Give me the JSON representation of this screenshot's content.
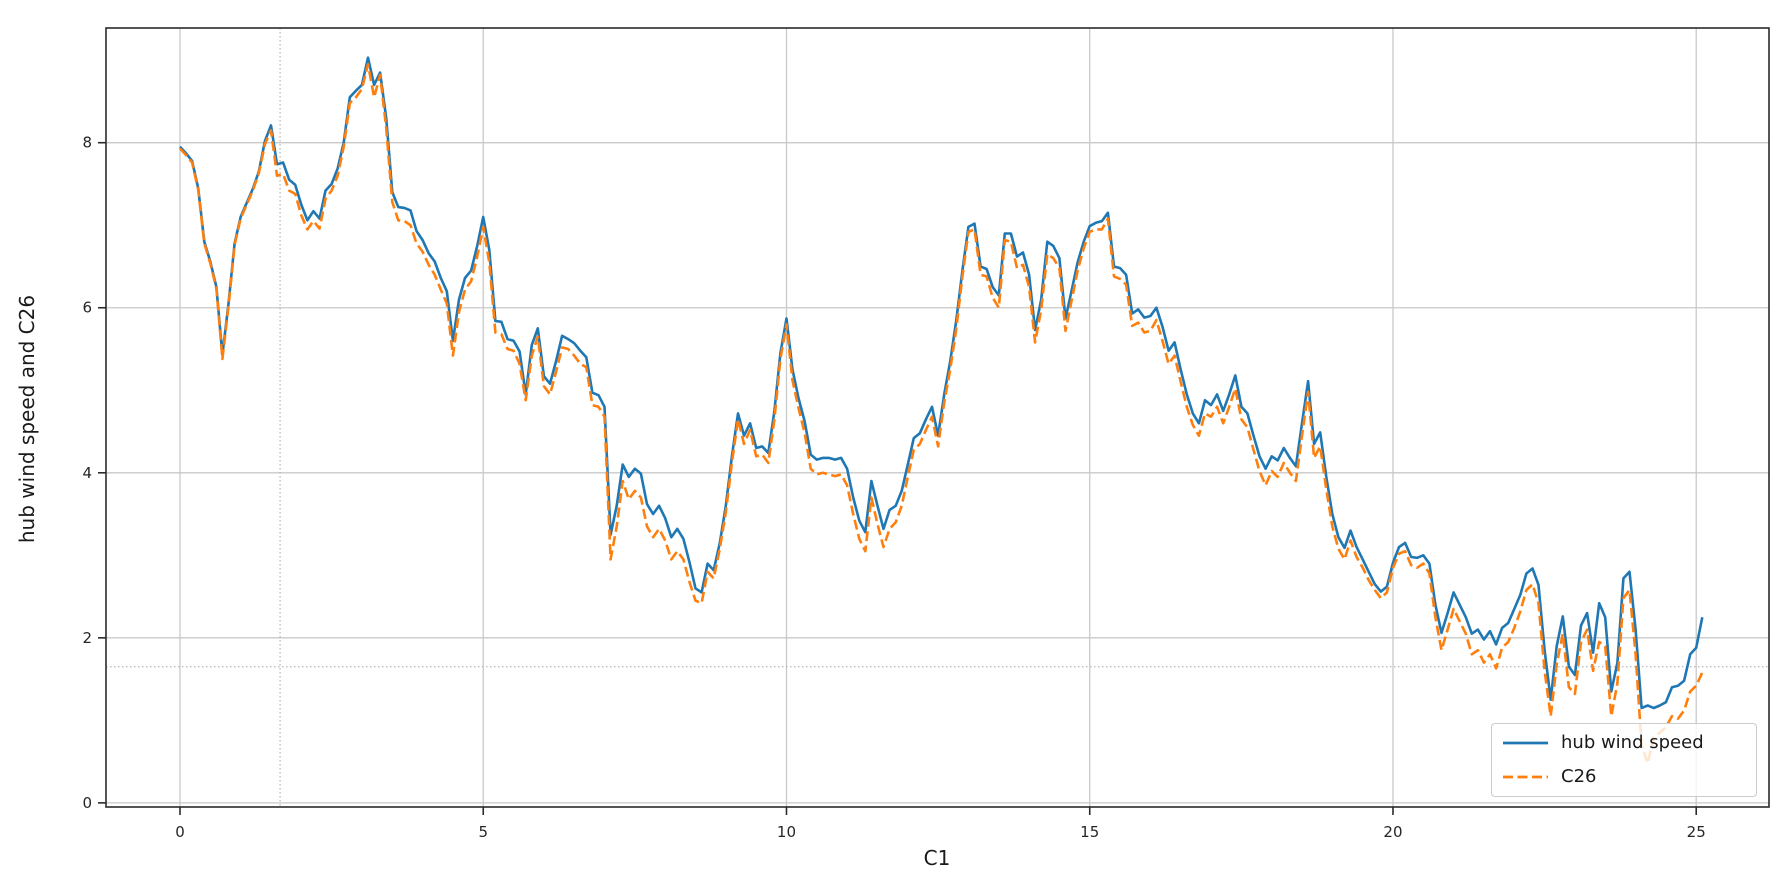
{
  "chart_data": {
    "type": "line",
    "title": "",
    "xlabel": "C1",
    "ylabel": "hub wind speed and C26",
    "xlim": [
      -1.22,
      26.2
    ],
    "ylim": [
      -0.05,
      9.39
    ],
    "x_ticks": [
      0,
      5,
      10,
      15,
      20,
      25
    ],
    "y_ticks": [
      0,
      2,
      4,
      6,
      8
    ],
    "grid": "major, solid light gray",
    "guide_lines": {
      "x": 1.65,
      "y": 1.65,
      "style": "dotted"
    },
    "legend_position": "lower right",
    "x_start": 0,
    "x_step": 0.1,
    "series": [
      {
        "name": "hub wind speed",
        "color": "#1f77b4",
        "style": "solid",
        "values": [
          7.95,
          7.87,
          7.78,
          7.45,
          6.8,
          6.56,
          6.25,
          5.43,
          6.05,
          6.78,
          7.1,
          7.27,
          7.44,
          7.65,
          8.02,
          8.21,
          7.74,
          7.76,
          7.55,
          7.49,
          7.25,
          7.06,
          7.17,
          7.08,
          7.42,
          7.5,
          7.69,
          8.0,
          8.55,
          8.63,
          8.7,
          9.03,
          8.7,
          8.85,
          8.3,
          7.4,
          7.22,
          7.21,
          7.18,
          6.93,
          6.82,
          6.66,
          6.56,
          6.36,
          6.2,
          5.6,
          6.1,
          6.36,
          6.45,
          6.75,
          7.1,
          6.7,
          5.84,
          5.83,
          5.62,
          5.6,
          5.47,
          4.95,
          5.55,
          5.75,
          5.17,
          5.08,
          5.35,
          5.66,
          5.62,
          5.57,
          5.48,
          5.4,
          4.97,
          4.94,
          4.8,
          3.25,
          3.6,
          4.1,
          3.95,
          4.05,
          3.99,
          3.62,
          3.5,
          3.6,
          3.45,
          3.22,
          3.32,
          3.2,
          2.92,
          2.6,
          2.55,
          2.9,
          2.82,
          3.15,
          3.6,
          4.2,
          4.72,
          4.45,
          4.6,
          4.3,
          4.32,
          4.24,
          4.75,
          5.45,
          5.87,
          5.25,
          4.9,
          4.62,
          4.22,
          4.16,
          4.18,
          4.18,
          4.16,
          4.18,
          4.05,
          3.7,
          3.42,
          3.28,
          3.9,
          3.6,
          3.32,
          3.55,
          3.6,
          3.78,
          4.1,
          4.42,
          4.48,
          4.65,
          4.8,
          4.45,
          4.95,
          5.35,
          5.85,
          6.45,
          6.98,
          7.02,
          6.5,
          6.47,
          6.25,
          6.15,
          6.9,
          6.9,
          6.62,
          6.67,
          6.4,
          5.73,
          6.1,
          6.8,
          6.75,
          6.6,
          5.87,
          6.2,
          6.55,
          6.8,
          6.99,
          7.03,
          7.05,
          7.15,
          6.5,
          6.48,
          6.4,
          5.93,
          5.98,
          5.88,
          5.9,
          6.0,
          5.77,
          5.48,
          5.58,
          5.25,
          4.95,
          4.72,
          4.6,
          4.88,
          4.82,
          4.95,
          4.75,
          4.95,
          5.18,
          4.8,
          4.72,
          4.45,
          4.2,
          4.05,
          4.2,
          4.15,
          4.3,
          4.18,
          4.08,
          4.6,
          5.11,
          4.35,
          4.49,
          3.95,
          3.5,
          3.22,
          3.09,
          3.3,
          3.1,
          2.95,
          2.8,
          2.65,
          2.56,
          2.62,
          2.91,
          3.1,
          3.15,
          2.98,
          2.97,
          3.0,
          2.9,
          2.4,
          2.06,
          2.3,
          2.55,
          2.4,
          2.25,
          2.05,
          2.1,
          1.98,
          2.08,
          1.92,
          2.12,
          2.18,
          2.35,
          2.52,
          2.78,
          2.84,
          2.64,
          1.85,
          1.25,
          1.9,
          2.26,
          1.65,
          1.55,
          2.15,
          2.3,
          1.82,
          2.42,
          2.25,
          1.35,
          1.7,
          2.72,
          2.8,
          2.1,
          1.15,
          1.18,
          1.15,
          1.18,
          1.22,
          1.4,
          1.42,
          1.48,
          1.8,
          1.88,
          2.25
        ]
      },
      {
        "name": "C26",
        "color": "#ff7f0e",
        "style": "dashed",
        "values": [
          7.93,
          7.85,
          7.76,
          7.43,
          6.78,
          6.54,
          6.23,
          5.38,
          6.02,
          6.76,
          7.08,
          7.25,
          7.42,
          7.63,
          7.98,
          8.15,
          7.6,
          7.62,
          7.42,
          7.38,
          7.12,
          6.95,
          7.05,
          6.96,
          7.32,
          7.42,
          7.6,
          7.95,
          8.48,
          8.55,
          8.65,
          8.95,
          8.55,
          8.82,
          8.18,
          7.28,
          7.06,
          7.05,
          7.0,
          6.78,
          6.68,
          6.52,
          6.4,
          6.22,
          6.05,
          5.42,
          5.95,
          6.22,
          6.32,
          6.62,
          6.98,
          6.55,
          5.7,
          5.68,
          5.5,
          5.48,
          5.32,
          4.88,
          5.42,
          5.65,
          5.05,
          4.95,
          5.22,
          5.52,
          5.5,
          5.42,
          5.32,
          5.28,
          4.82,
          4.8,
          4.68,
          2.95,
          3.35,
          3.9,
          3.68,
          3.78,
          3.7,
          3.35,
          3.22,
          3.32,
          3.18,
          2.95,
          3.05,
          2.95,
          2.68,
          2.45,
          2.42,
          2.8,
          2.72,
          3.08,
          3.52,
          4.12,
          4.65,
          4.35,
          4.52,
          4.2,
          4.22,
          4.12,
          4.65,
          5.38,
          5.8,
          5.12,
          4.78,
          4.48,
          4.05,
          3.98,
          4.0,
          3.98,
          3.96,
          3.98,
          3.85,
          3.5,
          3.2,
          3.05,
          3.7,
          3.38,
          3.1,
          3.32,
          3.4,
          3.6,
          3.95,
          4.28,
          4.35,
          4.52,
          4.68,
          4.32,
          4.85,
          5.25,
          5.75,
          6.38,
          6.92,
          6.95,
          6.4,
          6.38,
          6.12,
          6.0,
          6.82,
          6.8,
          6.48,
          6.52,
          6.25,
          5.58,
          5.98,
          6.65,
          6.6,
          6.48,
          5.72,
          6.08,
          6.45,
          6.72,
          6.92,
          6.95,
          6.95,
          7.08,
          6.38,
          6.35,
          6.28,
          5.78,
          5.82,
          5.7,
          5.72,
          5.85,
          5.6,
          5.32,
          5.42,
          5.1,
          4.8,
          4.58,
          4.45,
          4.72,
          4.68,
          4.8,
          4.6,
          4.8,
          5.02,
          4.65,
          4.55,
          4.28,
          4.02,
          3.85,
          4.02,
          3.95,
          4.12,
          4.0,
          3.9,
          4.45,
          4.98,
          4.18,
          4.32,
          3.8,
          3.35,
          3.08,
          2.95,
          3.18,
          2.98,
          2.85,
          2.7,
          2.58,
          2.48,
          2.55,
          2.85,
          3.02,
          3.05,
          2.88,
          2.85,
          2.9,
          2.78,
          2.25,
          1.85,
          2.1,
          2.35,
          2.2,
          2.05,
          1.8,
          1.85,
          1.7,
          1.8,
          1.63,
          1.88,
          1.95,
          2.12,
          2.32,
          2.58,
          2.65,
          2.42,
          1.6,
          1.05,
          1.68,
          2.05,
          1.4,
          1.32,
          1.95,
          2.1,
          1.6,
          1.95,
          1.9,
          1.05,
          1.45,
          2.48,
          2.58,
          1.8,
          0.7,
          0.48,
          0.8,
          0.85,
          0.92,
          1.05,
          1.02,
          1.12,
          1.35,
          1.42,
          1.58
        ]
      }
    ]
  },
  "colors": {
    "grid": "#c9c9c9",
    "guide": "#a8a8a8",
    "spine": "#2b2b2b",
    "tick_label": "#262626",
    "legend_border": "#cccccc"
  }
}
